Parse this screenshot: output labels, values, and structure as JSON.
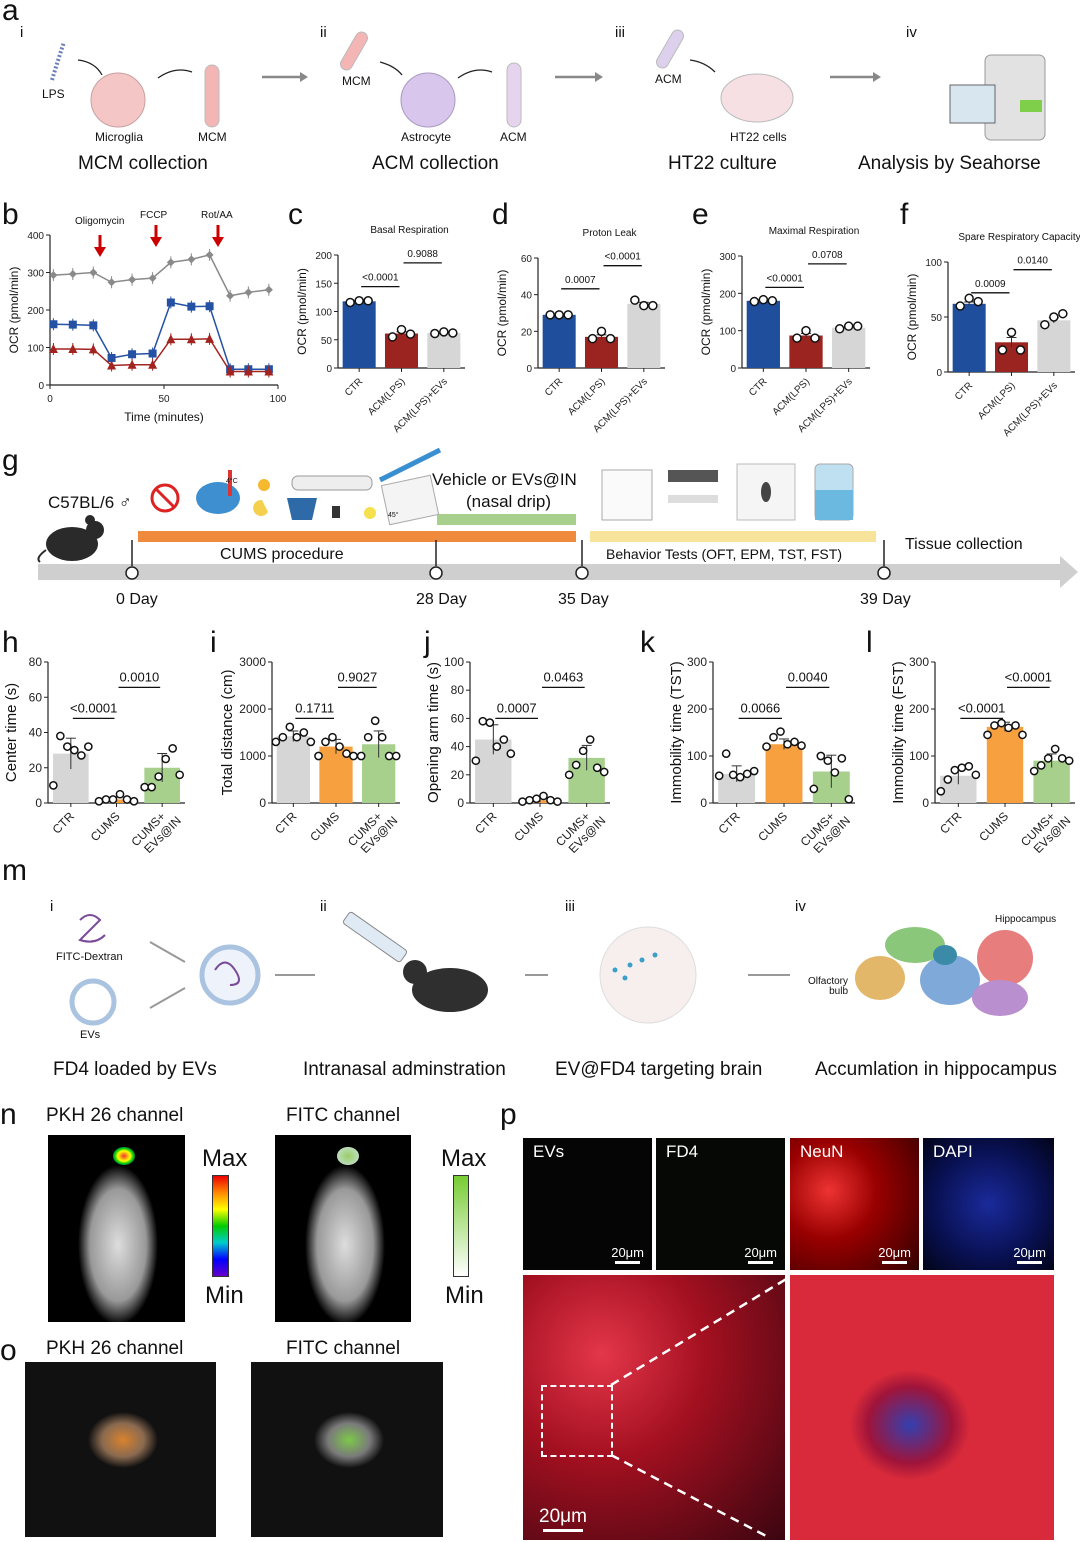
{
  "panel_labels": {
    "a": "a",
    "b": "b",
    "c": "c",
    "d": "d",
    "e": "e",
    "f": "f",
    "g": "g",
    "h": "h",
    "i": "i",
    "j": "j",
    "k": "k",
    "l": "l",
    "m": "m",
    "n": "n",
    "o": "o",
    "p": "p"
  },
  "panel_a": {
    "steps": [
      "i",
      "ii",
      "iii",
      "iv"
    ],
    "lps": "LPS",
    "microglia": "Microglia",
    "mcm": "MCM",
    "mcm2": "MCM",
    "astrocyte": "Astrocyte",
    "acm": "ACM",
    "acm2": "ACM",
    "ht22": "HT22 cells",
    "captions": [
      "MCM  collection",
      "ACM collection",
      "HT22 culture",
      "Analysis by Seahorse"
    ]
  },
  "panel_b_annotations": [
    "Oligomycin",
    "FCCP",
    "Rot/AA"
  ],
  "panel_g": {
    "strain": "C57BL/6 ♂",
    "treatment": "Vehicle or EVs@IN",
    "treatment_sub": "(nasal drip)",
    "cums": "CUMS procedure",
    "behavior": "Behavior Tests (OFT, EPM, TST, FST)",
    "tissue": "Tissue collection",
    "days": [
      "0 Day",
      "28 Day",
      "35 Day",
      "39 Day"
    ],
    "temp": "4°C",
    "angle": "45°",
    "colors": {
      "cums": "#f08a3c",
      "treatment": "#a8d08d",
      "behavior": "#f7e39a",
      "timeline": "#cfcfcf"
    }
  },
  "panel_m": {
    "steps": [
      "i",
      "ii",
      "iii",
      "iv"
    ],
    "fitc": "FITC-Dextran",
    "evs": "EVs",
    "olfactory": "Olfactory bulb",
    "hippocampus": "Hippocampus",
    "captions": [
      "FD4 loaded by EVs",
      "Intranasal adminstration",
      "EV@FD4 targeting brain",
      "Accumlation in hippocampus"
    ]
  },
  "panel_n": {
    "pkh": "PKH 26 channel",
    "fitc": "FITC channel",
    "max1": "Max",
    "min1": "Min",
    "max2": "Max",
    "min2": "Min"
  },
  "panel_o": {
    "pkh": "PKH 26 channel",
    "fitc": "FITC channel"
  },
  "panel_p": {
    "tiles": [
      "EVs",
      "FD4",
      "NeuN",
      "DAPI"
    ],
    "scale": "20μm"
  },
  "chart_data": [
    {
      "id": "b",
      "type": "line",
      "xlabel": "Time (minutes)",
      "ylabel": "OCR (pmol/min)",
      "xlim": [
        0,
        100
      ],
      "ylim": [
        0,
        400
      ],
      "xticks": [
        0,
        50,
        100
      ],
      "yticks": [
        0,
        100,
        200,
        300,
        400
      ],
      "x": [
        1.5,
        10,
        19,
        27,
        36,
        45,
        53,
        62,
        70,
        79,
        87,
        96
      ],
      "series": [
        {
          "name": "CTR",
          "color": "#8a8a8a",
          "marker": "diamond",
          "values": [
            293,
            296,
            300,
            274,
            281,
            285,
            327,
            335,
            347,
            238,
            247,
            254
          ]
        },
        {
          "name": "ACM(LPS)+EVs",
          "color": "#2451a3",
          "marker": "square",
          "values": [
            162,
            161,
            159,
            72,
            82,
            84,
            220,
            209,
            210,
            42,
            42,
            42
          ]
        },
        {
          "name": "ACM(LPS)",
          "color": "#a3231e",
          "marker": "triangle",
          "values": [
            96,
            96,
            95,
            52,
            54,
            54,
            122,
            122,
            123,
            36,
            36,
            36
          ]
        }
      ]
    },
    {
      "id": "c",
      "type": "bar",
      "title": "Basal Respiration",
      "ylabel": "OCR (pmol/min)",
      "ylim": [
        0,
        200
      ],
      "yticks": [
        0,
        50,
        100,
        150,
        200
      ],
      "categories": [
        "CTR",
        "ACM(LPS)",
        "ACM(LPS)+EVs"
      ],
      "colors": [
        "#1f4e9c",
        "#9c2420",
        "#d6d6d6"
      ],
      "values": [
        118,
        61,
        62
      ],
      "points": [
        [
          116,
          119,
          119
        ],
        [
          55,
          68,
          60
        ],
        [
          61,
          64,
          62
        ]
      ],
      "pvalues": [
        "<0.0001",
        "0.9088"
      ]
    },
    {
      "id": "d",
      "type": "bar",
      "title": "Proton Leak",
      "ylabel": "OCR (pmol/min)",
      "ylim": [
        0,
        60
      ],
      "yticks": [
        0,
        20,
        40,
        60
      ],
      "categories": [
        "CTR",
        "ACM(LPS)",
        "ACM(LPS)+EVs"
      ],
      "colors": [
        "#1f4e9c",
        "#9c2420",
        "#d6d6d6"
      ],
      "values": [
        29,
        17,
        35
      ],
      "points": [
        [
          29,
          29,
          29
        ],
        [
          16,
          20,
          16
        ],
        [
          37,
          34,
          34
        ]
      ],
      "pvalues": [
        "0.0007",
        "<0.0001"
      ]
    },
    {
      "id": "e",
      "type": "bar",
      "title": "Maximal Respiration",
      "ylabel": "OCR (pmol/min)",
      "ylim": [
        0,
        300
      ],
      "yticks": [
        0,
        100,
        200,
        300
      ],
      "categories": [
        "CTR",
        "ACM(LPS)",
        "ACM(LPS)+EVs"
      ],
      "colors": [
        "#1f4e9c",
        "#9c2420",
        "#d6d6d6"
      ],
      "values": [
        180,
        87,
        108
      ],
      "points": [
        [
          178,
          183,
          180
        ],
        [
          80,
          100,
          80
        ],
        [
          105,
          112,
          112
        ]
      ],
      "pvalues": [
        "<0.0001",
        "0.0708"
      ]
    },
    {
      "id": "f",
      "type": "bar",
      "title": "Spare Respiratory Capacity",
      "ylabel": "OCR (pmol/min)",
      "ylim": [
        0,
        100
      ],
      "yticks": [
        0,
        50,
        100
      ],
      "categories": [
        "CTR",
        "ACM(LPS)",
        "ACM(LPS)+EVs"
      ],
      "colors": [
        "#1f4e9c",
        "#9c2420",
        "#d6d6d6"
      ],
      "values": [
        62,
        27,
        47
      ],
      "points": [
        [
          60,
          67,
          64
        ],
        [
          20,
          36,
          20
        ],
        [
          43,
          50,
          53
        ]
      ],
      "pvalues": [
        "0.0009",
        "0.0140"
      ]
    },
    {
      "id": "h",
      "type": "bar",
      "title": "",
      "ylabel": "Center time (s)",
      "ylim": [
        0,
        80
      ],
      "yticks": [
        0,
        20,
        40,
        60,
        80
      ],
      "categories": [
        "CTR",
        "CUMS",
        "CUMS+ EVs@IN"
      ],
      "colors": [
        "#d6d6d6",
        "#f7a040",
        "#a8d08d"
      ],
      "values": [
        28,
        2,
        20
      ],
      "points": [
        [
          10,
          38,
          32,
          30,
          27,
          32
        ],
        [
          1,
          2,
          2,
          5,
          2,
          1
        ],
        [
          9,
          9,
          15,
          25,
          31,
          16
        ]
      ],
      "pvalues": [
        "<0.0001",
        "0.0010"
      ]
    },
    {
      "id": "i",
      "type": "bar",
      "title": "",
      "ylabel": "Total distance (cm)",
      "ylim": [
        0,
        3000
      ],
      "yticks": [
        0,
        1000,
        2000,
        3000
      ],
      "categories": [
        "CTR",
        "CUMS",
        "CUMS+ EVs@IN"
      ],
      "colors": [
        "#d6d6d6",
        "#f7a040",
        "#a8d08d"
      ],
      "values": [
        1420,
        1200,
        1250
      ],
      "points": [
        [
          1300,
          1400,
          1620,
          1400,
          1500,
          1300
        ],
        [
          1000,
          1300,
          1400,
          1200,
          1050,
          1000
        ],
        [
          1000,
          1400,
          1750,
          1400,
          1000,
          1000
        ]
      ],
      "pvalues": [
        "0.1711",
        "0.9027"
      ]
    },
    {
      "id": "j",
      "type": "bar",
      "title": "",
      "ylabel": "Opening arm time (s)",
      "ylim": [
        0,
        100
      ],
      "yticks": [
        0,
        20,
        40,
        60,
        80,
        100
      ],
      "categories": [
        "CTR",
        "CUMS",
        "CUMS+ EVs@IN"
      ],
      "colors": [
        "#d6d6d6",
        "#f7a040",
        "#a8d08d"
      ],
      "values": [
        45,
        2,
        32
      ],
      "points": [
        [
          30,
          58,
          57,
          40,
          45,
          35
        ],
        [
          1,
          2,
          3,
          5,
          2,
          1
        ],
        [
          20,
          27,
          37,
          45,
          25,
          22
        ]
      ],
      "pvalues": [
        "0.0007",
        "0.0463"
      ]
    },
    {
      "id": "k",
      "type": "bar",
      "title": "",
      "ylabel": "Immobility time (TST)",
      "ylim": [
        0,
        300
      ],
      "yticks": [
        0,
        100,
        200,
        300
      ],
      "categories": [
        "CTR",
        "CUMS",
        "CUMS+ EVs@IN"
      ],
      "colors": [
        "#d6d6d6",
        "#f7a040",
        "#a8d08d"
      ],
      "values": [
        62,
        125,
        67
      ],
      "points": [
        [
          58,
          105,
          60,
          55,
          62,
          68
        ],
        [
          120,
          140,
          152,
          125,
          130,
          122
        ],
        [
          30,
          100,
          90,
          65,
          95,
          8
        ]
      ],
      "pvalues": [
        "0.0066",
        "0.0040"
      ]
    },
    {
      "id": "l",
      "type": "bar",
      "title": "",
      "ylabel": "Immobility time (FST)",
      "ylim": [
        0,
        300
      ],
      "yticks": [
        0,
        100,
        200,
        300
      ],
      "categories": [
        "CTR",
        "CUMS",
        "CUMS+ EVs@IN"
      ],
      "colors": [
        "#d6d6d6",
        "#f7a040",
        "#a8d08d"
      ],
      "values": [
        58,
        162,
        90
      ],
      "points": [
        [
          25,
          50,
          70,
          75,
          78,
          60
        ],
        [
          145,
          165,
          170,
          160,
          165,
          145
        ],
        [
          68,
          80,
          95,
          115,
          95,
          90
        ]
      ],
      "pvalues": [
        "<0.0001",
        "<0.0001"
      ]
    }
  ]
}
